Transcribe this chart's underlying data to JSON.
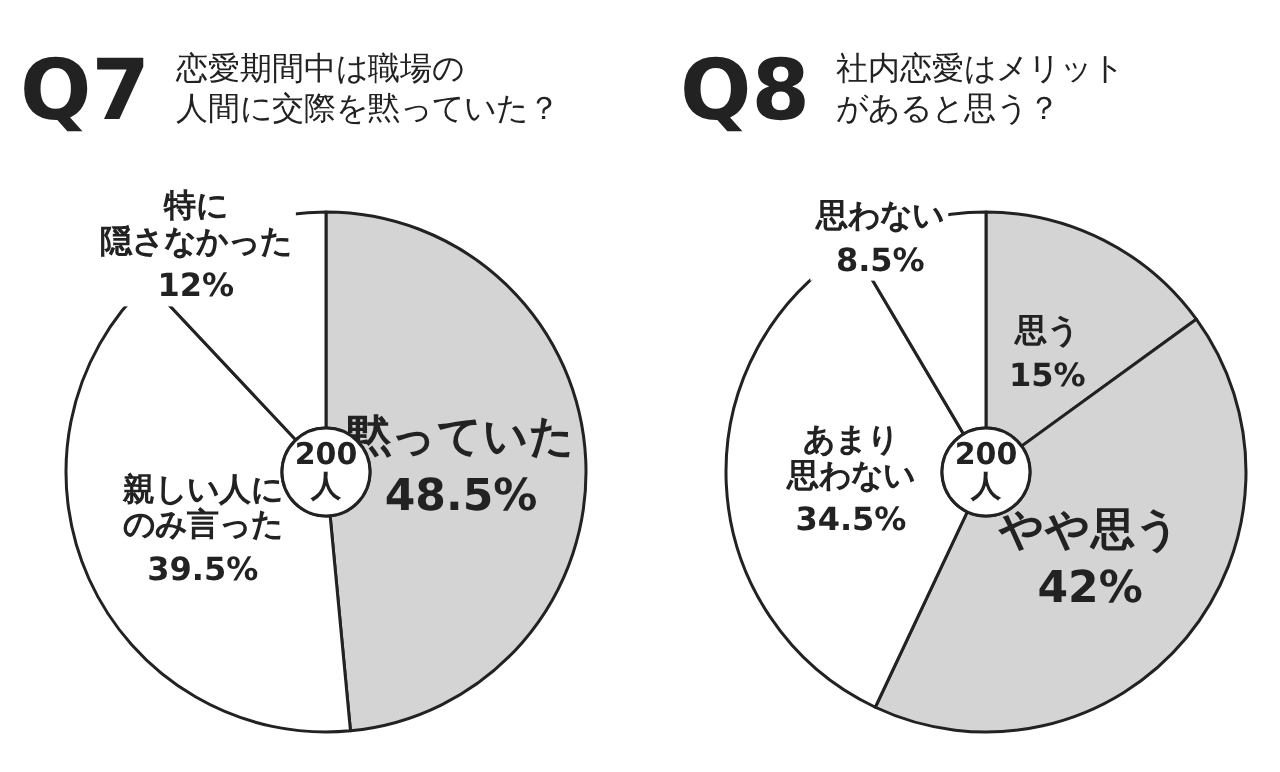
{
  "chart_data": [
    {
      "type": "donut",
      "title": "Q7",
      "subtitle": "恋愛期間中は職場の人間に交際を黙っていた？",
      "categories": [
        "黙っていた",
        "親しい人にのみ言った",
        "特に隠さなかった"
      ],
      "values": [
        48.5,
        39.5,
        12
      ],
      "colors": [
        "#d4d4d4",
        "#ffffff",
        "#ffffff"
      ],
      "value_labels": [
        "48.5%",
        "39.5%",
        "12%"
      ],
      "annotations": [
        "200\n人"
      ]
    },
    {
      "type": "donut",
      "title": "Q8",
      "subtitle": "社内恋愛はメリットがあると思う？",
      "categories": [
        "思う",
        "やや思う",
        "あまり思わない",
        "思わない"
      ],
      "values": [
        15,
        42,
        34.5,
        8.5
      ],
      "colors": [
        "#d4d4d4",
        "#d4d4d4",
        "#ffffff",
        "#ffffff"
      ],
      "value_labels": [
        "15%",
        "42%",
        "34.5%",
        "8.5%"
      ],
      "annotations": [
        "200\n人"
      ]
    }
  ]
}
